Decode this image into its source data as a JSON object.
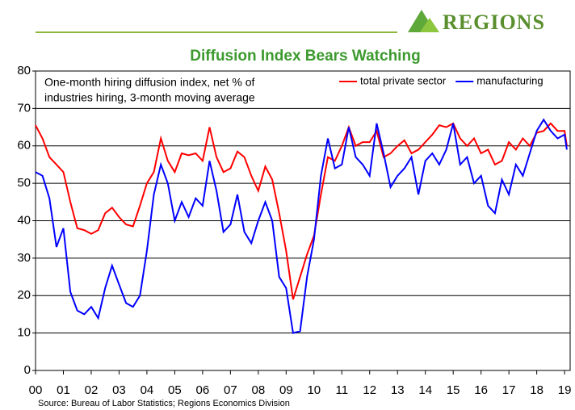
{
  "brand": "REGIONS",
  "chart_data": {
    "type": "line",
    "title": "Diffusion Index Bears Watching",
    "annotation": [
      "One-month hiring diffusion index, net % of",
      "industries hiring, 3-month moving average"
    ],
    "source": "Source: Bureau of Labor Statistics; Regions Economics Division",
    "x": [
      2000,
      2000.25,
      2000.5,
      2000.75,
      2001,
      2001.25,
      2001.5,
      2001.75,
      2002,
      2002.25,
      2002.5,
      2002.75,
      2003,
      2003.25,
      2003.5,
      2003.75,
      2004,
      2004.25,
      2004.5,
      2004.75,
      2005,
      2005.25,
      2005.5,
      2005.75,
      2006,
      2006.25,
      2006.5,
      2006.75,
      2007,
      2007.25,
      2007.5,
      2007.75,
      2008,
      2008.25,
      2008.5,
      2008.75,
      2009,
      2009.25,
      2009.5,
      2009.75,
      2010,
      2010.25,
      2010.5,
      2010.75,
      2011,
      2011.25,
      2011.5,
      2011.75,
      2012,
      2012.25,
      2012.5,
      2012.75,
      2013,
      2013.25,
      2013.5,
      2013.75,
      2014,
      2014.25,
      2014.5,
      2014.75,
      2015,
      2015.25,
      2015.5,
      2015.75,
      2016,
      2016.25,
      2016.5,
      2016.75,
      2017,
      2017.25,
      2017.5,
      2017.75,
      2018,
      2018.25,
      2018.5,
      2018.75,
      2019,
      2019.08
    ],
    "series": [
      {
        "name": "total private sector",
        "color": "#ff0000",
        "values": [
          65.5,
          62,
          57,
          55,
          53,
          45,
          38,
          37.5,
          36.5,
          37.5,
          42,
          43.5,
          41,
          39,
          38.5,
          44,
          50,
          53,
          62,
          56,
          53,
          58,
          57.5,
          58,
          56,
          65,
          57,
          53,
          54,
          58.5,
          57,
          52,
          48,
          54.5,
          51,
          42,
          32,
          19,
          25,
          31,
          36,
          47,
          57,
          56,
          60,
          65,
          60,
          61,
          61,
          64,
          57,
          58,
          60,
          61.5,
          58,
          59,
          61,
          63,
          65.5,
          65,
          66,
          62,
          60,
          62,
          58,
          59,
          55,
          56,
          61,
          59,
          62,
          60,
          63.5,
          64,
          66,
          64,
          64,
          60
        ]
      },
      {
        "name": "manufacturing",
        "color": "#0000ff",
        "values": [
          53,
          52,
          46,
          33,
          38,
          21,
          16,
          15,
          17,
          14,
          22,
          28,
          23,
          18,
          17,
          20,
          32,
          47,
          55,
          50,
          40,
          45,
          41,
          46,
          44,
          56,
          48,
          37,
          39,
          47,
          37,
          34,
          40,
          45,
          40,
          25,
          22,
          10,
          10.5,
          25,
          35,
          52,
          62,
          54,
          55,
          65,
          57,
          55,
          52,
          66,
          58,
          49,
          52,
          54,
          57,
          47,
          56,
          58,
          55,
          59,
          66,
          55,
          57,
          50,
          52,
          44,
          42,
          51,
          47,
          55,
          52,
          58,
          64,
          67,
          64,
          62,
          63,
          59
        ]
      }
    ],
    "xlim": [
      2000,
      2019.2
    ],
    "xticks": [
      {
        "value": 2000,
        "label": "00"
      },
      {
        "value": 2001,
        "label": "01"
      },
      {
        "value": 2002,
        "label": "02"
      },
      {
        "value": 2003,
        "label": "03"
      },
      {
        "value": 2004,
        "label": "04"
      },
      {
        "value": 2005,
        "label": "05"
      },
      {
        "value": 2006,
        "label": "06"
      },
      {
        "value": 2007,
        "label": "07"
      },
      {
        "value": 2008,
        "label": "08"
      },
      {
        "value": 2009,
        "label": "09"
      },
      {
        "value": 2010,
        "label": "10"
      },
      {
        "value": 2011,
        "label": "11"
      },
      {
        "value": 2012,
        "label": "12"
      },
      {
        "value": 2013,
        "label": "13"
      },
      {
        "value": 2014,
        "label": "14"
      },
      {
        "value": 2015,
        "label": "15"
      },
      {
        "value": 2016,
        "label": "16"
      },
      {
        "value": 2017,
        "label": "17"
      },
      {
        "value": 2018,
        "label": "18"
      },
      {
        "value": 2019,
        "label": "19"
      }
    ],
    "ylim": [
      0,
      80
    ],
    "yticks": [
      0,
      10,
      20,
      30,
      40,
      50,
      60,
      70,
      80
    ],
    "grid": true,
    "legend": "top-right"
  }
}
